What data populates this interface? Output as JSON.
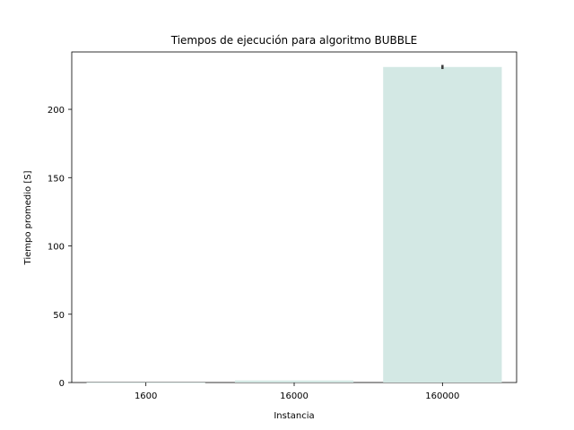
{
  "chart_data": {
    "type": "bar",
    "title": "Tiempos de ejecución para algoritmo BUBBLE",
    "xlabel": "Instancia",
    "ylabel": "Tiempo promedio [S]",
    "categories": [
      "1600",
      "16000",
      "160000"
    ],
    "values": [
      0.02,
      1.5,
      231
    ],
    "error_bars": [
      [
        0.02,
        0.02
      ],
      [
        1.4,
        1.6
      ],
      [
        229.5,
        232.5
      ]
    ],
    "ylim": [
      0,
      242
    ],
    "yticks": [
      0,
      50,
      100,
      150,
      200
    ],
    "ytick_labels": [
      "0",
      "50",
      "100",
      "150",
      "200"
    ],
    "bar_color": "#d3e8e4",
    "error_color": "#3b3b3b",
    "grid": false,
    "legend": "none"
  }
}
